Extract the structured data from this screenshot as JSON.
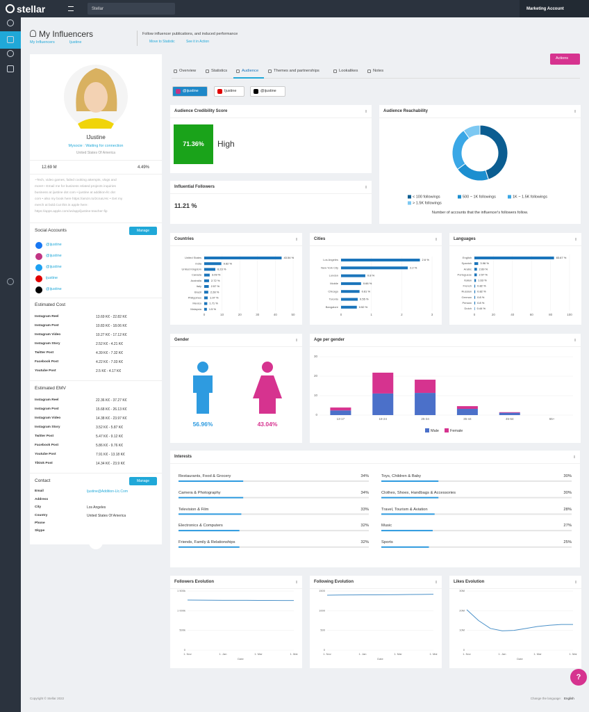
{
  "topbar": {
    "logo": "stellar",
    "workspace": "Stellar",
    "account": "Marketing Account"
  },
  "header": {
    "title": "My Influencers",
    "breadcrumb": [
      "My Influencers",
      "Ijustine"
    ],
    "description": "Follow influencer publications, and induced performance",
    "links": [
      "Move to Statistic",
      "See it in Action"
    ]
  },
  "profile": {
    "name": "IJustine",
    "status": "Mysocie : Waiting for connection",
    "country": "United States Of America",
    "followers": "12.69 M",
    "engagement": "4.49%",
    "bio": [
      "~Tech, video games, failed cooking attempts, vlogs and",
      "more!~ Email me for business related projects inquiries",
      "business at ijustine dot com • ijustine at addition-llc dot",
      "com • also my book here https://amzn.to/2cnaUHc • Get my",
      "merch at bold.Cut this is apple here:",
      "https://apps.apple.com/us/app/ijustine-teacher-fip"
    ],
    "social_title": "Social Accounts",
    "manage": "Manage",
    "accounts": [
      "@ijustine",
      "@ijustine",
      "@ijustine",
      "ijustine",
      "@ijustine"
    ],
    "cost_title": "Estimated Cost",
    "cost": [
      [
        "Instagram Reel",
        "13.69 K€ - 22.82 K€"
      ],
      [
        "Instagram Post",
        "10.83 K€ - 18.06 K€"
      ],
      [
        "Instagram Video",
        "10.27 K€ - 17.12 K€"
      ],
      [
        "Instagram Story",
        "2.52 K€ - 4.21 K€"
      ],
      [
        "Twitter Post",
        "4.39 K€ - 7.32 K€"
      ],
      [
        "Facebook Post",
        "4.22 K€ - 7.03 K€"
      ],
      [
        "Youtube Post",
        "2.5 K€ - 4.17 K€"
      ]
    ],
    "emv_title": "Estimated EMV",
    "emv": [
      [
        "Instagram Reel",
        "22.36 K€ - 37.27 K€"
      ],
      [
        "Instagram Post",
        "15.68 K€ - 26.13 K€"
      ],
      [
        "Instagram Video",
        "14.38 K€ - 23.97 K€"
      ],
      [
        "Instagram Story",
        "3.52 K€ - 5.87 K€"
      ],
      [
        "Twitter Post",
        "5.47 K€ - 9.12 K€"
      ],
      [
        "Facebook Post",
        "5.86 K€ - 9.76 K€"
      ],
      [
        "Youtube Post",
        "7.91 K€ - 13.18 K€"
      ],
      [
        "Tiktok Post",
        "14.34 K€ - 23.9 K€"
      ]
    ],
    "contact_title": "Contact",
    "contact": [
      {
        "label": "Email",
        "value": "Ijustine@Addition-Llc.Com"
      },
      {
        "label": "Address"
      },
      {
        "label": "City",
        "value": "Los Angeles"
      },
      {
        "label": "Country",
        "value": "United States Of America"
      },
      {
        "label": "Phone"
      },
      {
        "label": "Skype"
      }
    ]
  },
  "tabs": [
    "Overview",
    "Statistics",
    "Audience",
    "Themes and partnerships",
    "Lookalikes",
    "Notes"
  ],
  "actions": "Actions",
  "platforms": [
    "@ijustine",
    "Ijustine",
    "@ijustine"
  ],
  "credibility": {
    "title": "Audience Credibility Score",
    "value": "71.36%",
    "level": "High"
  },
  "influential": {
    "title": "Influential Followers",
    "value": "11.21 %"
  },
  "reachability": {
    "title": "Audience Reachability",
    "series": [
      {
        "name": "< 100 followings",
        "color": "#0b5d91",
        "value": 45
      },
      {
        "name": "500 ~ 1K followings",
        "color": "#1c8fd0",
        "value": 20
      },
      {
        "name": "1K ~ 1.5K followings",
        "color": "#3aa7e6",
        "value": 25
      },
      {
        "name": "> 1.5K followings",
        "color": "#7cc8f2",
        "value": 10
      }
    ],
    "caption": "Number of accounts that the influencer's followers follow."
  },
  "countries": {
    "title": "Countries",
    "color": "#1b75bb",
    "categories": [
      "United States",
      "India",
      "United Kingdom",
      "Canada",
      "Australia",
      "Italy",
      "Brazil",
      "Philippines",
      "Mexico",
      "Malaysia"
    ],
    "values": [
      43.54,
      9.62,
      6.23,
      3.09,
      2.72,
      2.57,
      2.28,
      1.97,
      1.71,
      1.5
    ],
    "value_labels": [
      "43.54 %",
      "9.62 %",
      "6.23 %",
      "3.09 %",
      "2.72 %",
      "2.57 %",
      "2.28 %",
      "1.97 %",
      "1.71 %",
      "1.5 %"
    ],
    "xlim": [
      0,
      50
    ],
    "xticks": [
      0,
      10,
      20,
      30,
      40,
      50
    ]
  },
  "cities": {
    "title": "Cities",
    "color": "#1b75bb",
    "categories": [
      "Los Angeles",
      "New York City",
      "London",
      "Mobile",
      "Chicago",
      "Toronto",
      "Bangalore"
    ],
    "values": [
      2.6,
      2.2,
      0.8,
      0.66,
      0.61,
      0.55,
      0.52
    ],
    "value_labels": [
      "2.6 %",
      "2.2 %",
      "0.8 %",
      "0.66 %",
      "0.61 %",
      "0.55 %",
      "0.52 %"
    ],
    "xlim": [
      0,
      3
    ],
    "xticks": [
      0,
      1,
      2,
      3
    ]
  },
  "languages": {
    "title": "Languages",
    "color": "#1b75bb",
    "categories": [
      "English",
      "Spanish",
      "Arabic",
      "Portuguese",
      "Italian",
      "French",
      "Russian",
      "German",
      "Persian",
      "Dutch"
    ],
    "values": [
      83.67,
      3.96,
      2.69,
      2.57,
      1.63,
      0.82,
      0.82,
      0.8,
      0.8,
      0.44
    ],
    "value_labels": [
      "83.67 %",
      "3.96 %",
      "2.69 %",
      "2.57 %",
      "1.63 %",
      "0.82 %",
      "0.82 %",
      "0.8 %",
      "0.8 %",
      "0.44 %"
    ],
    "xlim": [
      0,
      100
    ],
    "xticks": [
      0,
      20,
      40,
      60,
      80,
      100
    ]
  },
  "gender": {
    "title": "Gender",
    "male": "56.96%",
    "female": "43.04%",
    "male_color": "#2e9be0",
    "female_color": "#d6338f"
  },
  "age": {
    "title": "Age per gender",
    "categories": [
      "13-17",
      "18-24",
      "25-34",
      "35-44",
      "45-64",
      "65+"
    ],
    "series": [
      {
        "name": "Male",
        "color": "#4b70c9",
        "values": [
          2.4,
          11.1,
          11.4,
          3.2,
          1.2,
          0
        ]
      },
      {
        "name": "Female",
        "color": "#d6338f",
        "values": [
          1.5,
          10.7,
          6.8,
          1.4,
          0.3,
          0
        ]
      }
    ],
    "ylim": [
      0,
      30
    ],
    "yticks": [
      0,
      10,
      20,
      30
    ]
  },
  "interests": {
    "title": "Interests",
    "items": [
      {
        "name": "Restaurants, Food & Grocery",
        "value": 34,
        "label": "34%"
      },
      {
        "name": "Camera & Photography",
        "value": 34,
        "label": "34%"
      },
      {
        "name": "Television & Film",
        "value": 33,
        "label": "33%"
      },
      {
        "name": "Electronics & Computers",
        "value": 32,
        "label": "32%"
      },
      {
        "name": "Friends, Family & Relationships",
        "value": 32,
        "label": "32%"
      },
      {
        "name": "Toys, Children & Baby",
        "value": 30,
        "label": "30%"
      },
      {
        "name": "Clothes, Shoes, Handbags & Accessories",
        "value": 30,
        "label": "30%"
      },
      {
        "name": "Travel, Tourism & Aviation",
        "value": 28,
        "label": "28%"
      },
      {
        "name": "Music",
        "value": 27,
        "label": "27%"
      },
      {
        "name": "Sports",
        "value": 25,
        "label": "25%"
      }
    ]
  },
  "evolution": [
    {
      "title": "Followers Evolution",
      "color": "#4a90c8",
      "x_labels": [
        "1. Nov",
        "1. Jan",
        "1. Mar",
        "1. Mai"
      ],
      "xlabel": "Date",
      "ylim": [
        0,
        1500
      ],
      "yticks": [
        0,
        {
          "value": 500,
          "label": "500k"
        },
        {
          "value": 1000,
          "label": "1 000k"
        },
        {
          "value": 1500,
          "label": "1 500k"
        }
      ],
      "values": [
        1270,
        1268,
        1266,
        1265,
        1264,
        1263,
        1262,
        1261,
        1260,
        1259
      ]
    },
    {
      "title": "Following Evolution",
      "color": "#4a90c8",
      "x_labels": [
        "1. Nov",
        "1. Jan",
        "1. Mar",
        "1. Mai"
      ],
      "xlabel": "Date",
      "ylim": [
        0,
        1500
      ],
      "yticks": [
        0,
        {
          "value": 500,
          "label": "500"
        },
        {
          "value": 1000,
          "label": "1000"
        },
        {
          "value": 1500,
          "label": "1500"
        }
      ],
      "values": [
        1395,
        1398,
        1400,
        1402,
        1404,
        1406,
        1408,
        1411,
        1414,
        1418
      ]
    },
    {
      "title": "Likes Evolution",
      "color": "#4a90c8",
      "x_labels": [
        "1. Nov",
        "1. Jan",
        "1. Mar",
        "1. Mai"
      ],
      "xlabel": "Date",
      "ylim": [
        0,
        30
      ],
      "yticks": [
        0,
        {
          "value": 10,
          "label": "10M"
        },
        {
          "value": 20,
          "label": "20M"
        },
        {
          "value": 30,
          "label": "30M"
        }
      ],
      "values": [
        20.5,
        15,
        11,
        9.8,
        10,
        11,
        12,
        12.6,
        13,
        13
      ]
    }
  ],
  "footer": {
    "copyright": "Copyright © Stellar 2022",
    "language_label": "Change the language:",
    "language": "English"
  },
  "help": "?"
}
